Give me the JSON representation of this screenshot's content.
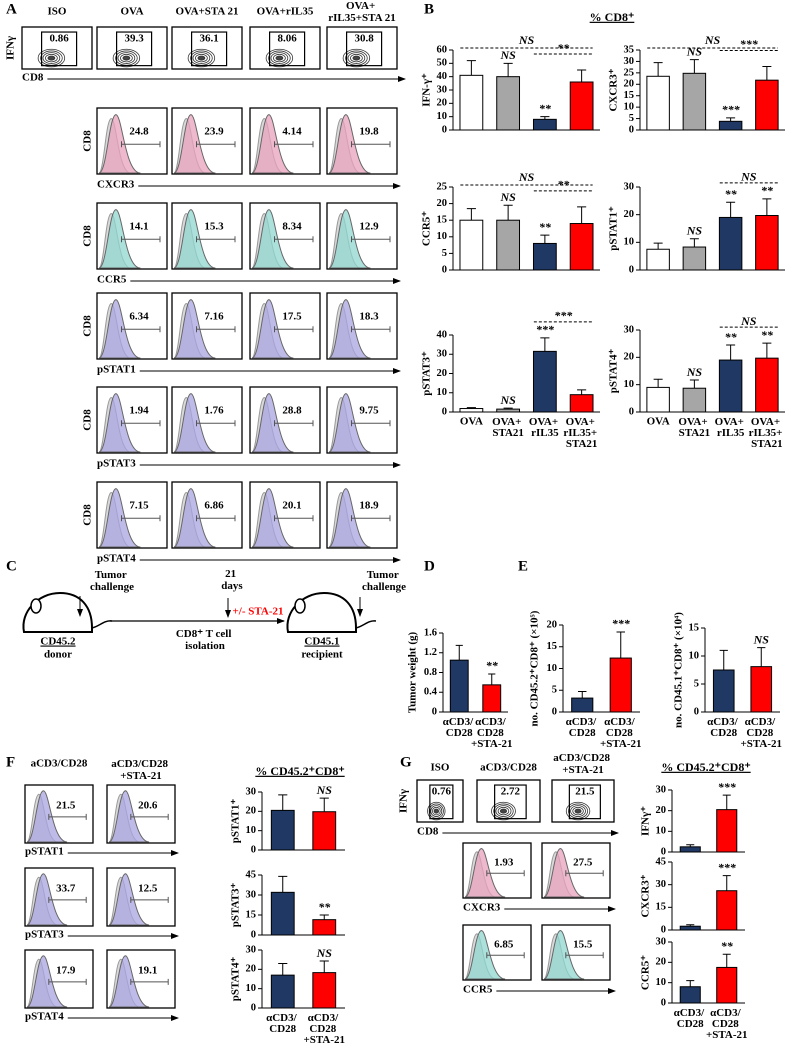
{
  "panel_labels": [
    "A",
    "B",
    "C",
    "D",
    "E",
    "F",
    "G"
  ],
  "panel_A": {
    "contour": {
      "y_label": "IFNγ",
      "x_label": "CD8",
      "samples": [
        "ISO",
        "OVA",
        "OVA+STA 21",
        "OVA+rIL35",
        "OVA+\nrIL35+STA 21"
      ],
      "values": [
        0.86,
        39.3,
        36.1,
        8.06,
        30.8
      ]
    },
    "histograms": [
      {
        "y_label": "CD8",
        "x_label": "CXCR3",
        "color": "#e8a0bc",
        "values": [
          24.8,
          23.9,
          4.14,
          19.8
        ]
      },
      {
        "y_label": "CD8",
        "x_label": "CCR5",
        "color": "#8fd6cf",
        "values": [
          14.1,
          15.3,
          8.34,
          12.9
        ]
      },
      {
        "y_label": "CD8",
        "x_label": "pSTAT1",
        "color": "#a9a4e0",
        "values": [
          6.34,
          7.16,
          17.5,
          18.3
        ]
      },
      {
        "y_label": "CD8",
        "x_label": "pSTAT3",
        "color": "#a9a4e0",
        "values": [
          1.94,
          1.76,
          28.8,
          9.75
        ]
      },
      {
        "y_label": "CD8",
        "x_label": "pSTAT4",
        "color": "#a9a4e0",
        "values": [
          7.15,
          6.86,
          20.1,
          18.9
        ]
      }
    ]
  },
  "panel_B": {
    "header": "% CD8⁺"
  },
  "panel_C": {
    "challenge_1": "Tumor\nchallenge",
    "donor_strain": "CD45.2",
    "donor": "donor",
    "days": "21\ndays",
    "isolation": "CD8⁺ T cell\nisolation",
    "treatment": "+/- STA-21",
    "recipient_strain": "CD45.1",
    "recipient": "recipient",
    "challenge_2": "Tumor\nchallenge"
  },
  "panel_F": {
    "columns": [
      "aCD3/CD28",
      "aCD3/CD28\n+STA-21"
    ],
    "header": "% CD45.2⁺CD8⁺",
    "histograms": [
      {
        "x_label": "pSTAT1",
        "color": "#a9a4e0",
        "values": [
          21.5,
          20.6
        ]
      },
      {
        "x_label": "pSTAT3",
        "color": "#a9a4e0",
        "values": [
          33.7,
          12.5
        ]
      },
      {
        "x_label": "pSTAT4",
        "color": "#a9a4e0",
        "values": [
          17.9,
          19.1
        ]
      }
    ]
  },
  "panel_G": {
    "contour": {
      "y_label": "IFNγ",
      "x_label": "CD8",
      "samples": [
        "ISO",
        "aCD3/CD28",
        "aCD3/CD28\n+STA-21"
      ],
      "values": [
        0.76,
        2.72,
        21.5
      ]
    },
    "header": "% CD45.2⁺CD8⁺",
    "histograms": [
      {
        "x_label": "CXCR3",
        "color": "#e8a0bc",
        "values": [
          1.93,
          27.5
        ]
      },
      {
        "x_label": "CCR5",
        "color": "#8fd6cf",
        "values": [
          6.85,
          15.5
        ]
      }
    ]
  },
  "chart_data": [
    {
      "type": "bar",
      "y_label": "IFN-γ⁺",
      "values": [
        41,
        40,
        8,
        36
      ],
      "errors": [
        11,
        10,
        2,
        9
      ],
      "colors": [
        "#ffffff",
        "#a6a6a6",
        "#1f3864",
        "#ff0000"
      ],
      "ylim": [
        0,
        60
      ],
      "yticks": [
        0,
        10,
        20,
        30,
        40,
        50,
        60
      ],
      "bar_labels": [
        null,
        "NS",
        "**",
        null
      ],
      "overall_label": "NS",
      "pair_label": "**"
    },
    {
      "type": "bar",
      "y_label": "CXCR3⁺",
      "values": [
        23.5,
        24.8,
        3.8,
        21.8
      ],
      "errors": [
        6,
        6,
        1.5,
        6
      ],
      "colors": [
        "#ffffff",
        "#a6a6a6",
        "#1f3864",
        "#ff0000"
      ],
      "ylim": [
        0,
        35
      ],
      "yticks": [
        0,
        5,
        10,
        15,
        20,
        25,
        30,
        35
      ],
      "bar_labels": [
        null,
        "NS",
        "***",
        null
      ],
      "overall_label": "NS",
      "pair_label": "***"
    },
    {
      "type": "bar",
      "y_label": "CCR5⁺",
      "values": [
        15,
        15,
        8,
        14
      ],
      "errors": [
        3.5,
        4.5,
        2.5,
        5
      ],
      "colors": [
        "#ffffff",
        "#a6a6a6",
        "#1f3864",
        "#ff0000"
      ],
      "ylim": [
        0,
        25
      ],
      "yticks": [
        0,
        5,
        10,
        15,
        20,
        25
      ],
      "bar_labels": [
        null,
        "NS",
        "**",
        null
      ],
      "overall_label": "NS",
      "pair_label": "**"
    },
    {
      "type": "bar",
      "y_label": "pSTAT1⁺",
      "values": [
        7.5,
        8.3,
        19,
        19.7
      ],
      "errors": [
        2.2,
        3,
        5.5,
        6
      ],
      "colors": [
        "#ffffff",
        "#a6a6a6",
        "#1f3864",
        "#ff0000"
      ],
      "ylim": [
        0,
        30
      ],
      "yticks": [
        0,
        10,
        20,
        30
      ],
      "bar_labels": [
        null,
        "NS",
        "**",
        "**"
      ],
      "pair_label": "NS"
    },
    {
      "type": "bar",
      "y_label": "pSTAT3⁺",
      "categories": [
        "OVA",
        "OVA+\nSTA21",
        "OVA+\nrIL35",
        "OVA+\nrIL35+\nSTA21"
      ],
      "values": [
        1.8,
        1.5,
        31.5,
        9
      ],
      "errors": [
        0.5,
        0.5,
        7,
        2.5
      ],
      "colors": [
        "#ffffff",
        "#a6a6a6",
        "#1f3864",
        "#ff0000"
      ],
      "ylim": [
        0,
        40
      ],
      "yticks": [
        0,
        10,
        20,
        30,
        40
      ],
      "bar_labels": [
        null,
        "NS",
        "***",
        null
      ],
      "pair_label": "***"
    },
    {
      "type": "bar",
      "y_label": "pSTAT4⁺",
      "categories": [
        "OVA",
        "OVA+\nSTA21",
        "OVA+\nrIL35",
        "OVA+\nrIL35+\nSTA21"
      ],
      "values": [
        9,
        8.7,
        19,
        19.7
      ],
      "errors": [
        3,
        3,
        5.5,
        5.5
      ],
      "colors": [
        "#ffffff",
        "#a6a6a6",
        "#1f3864",
        "#ff0000"
      ],
      "ylim": [
        0,
        30
      ],
      "yticks": [
        0,
        10,
        20,
        30
      ],
      "bar_labels": [
        null,
        "NS",
        "**",
        "**"
      ],
      "pair_label": "NS"
    },
    {
      "type": "bar",
      "y_label": "Tumor weight (g)",
      "categories": [
        "αCD3/\nCD28",
        "αCD3/\nCD28\n+STA-21"
      ],
      "values": [
        1.05,
        0.55
      ],
      "errors": [
        0.3,
        0.22
      ],
      "colors": [
        "#1f3864",
        "#ff0000"
      ],
      "ylim": [
        0,
        1.6
      ],
      "yticks": [
        0,
        0.4,
        0.8,
        1.2,
        1.6
      ],
      "bar_labels": [
        null,
        "**"
      ]
    },
    {
      "type": "bar",
      "y_label": "no. CD45.2⁺CD8⁺ (×10⁵)",
      "categories": [
        "αCD3/\nCD28",
        "αCD3/\nCD28\n+STA-21"
      ],
      "values": [
        3.2,
        12.4
      ],
      "errors": [
        1.5,
        6
      ],
      "colors": [
        "#1f3864",
        "#ff0000"
      ],
      "ylim": [
        0,
        20
      ],
      "yticks": [
        0,
        5,
        10,
        15,
        20
      ],
      "bar_labels": [
        null,
        "***"
      ]
    },
    {
      "type": "bar",
      "y_label": "no. CD45.1⁺CD8⁺ (×10⁴)",
      "categories": [
        "αCD3/\nCD28",
        "αCD3/\nCD28\n+STA-21"
      ],
      "values": [
        7.5,
        8.1
      ],
      "errors": [
        3.5,
        3.4
      ],
      "colors": [
        "#1f3864",
        "#ff0000"
      ],
      "ylim": [
        0,
        15
      ],
      "yticks": [
        0,
        5,
        10,
        15
      ],
      "bar_labels": [
        null,
        "NS"
      ]
    },
    {
      "type": "bar",
      "y_label": "pSTAT1⁺",
      "values": [
        20.5,
        19.8
      ],
      "errors": [
        8,
        7
      ],
      "colors": [
        "#1f3864",
        "#ff0000"
      ],
      "ylim": [
        0,
        30
      ],
      "yticks": [
        0,
        10,
        20,
        30
      ],
      "bar_labels": [
        null,
        "NS"
      ]
    },
    {
      "type": "bar",
      "y_label": "pSTAT3⁺",
      "values": [
        32,
        11.5
      ],
      "errors": [
        12,
        3.5
      ],
      "colors": [
        "#1f3864",
        "#ff0000"
      ],
      "ylim": [
        0,
        45
      ],
      "yticks": [
        0,
        15,
        30,
        45
      ],
      "bar_labels": [
        null,
        "**"
      ]
    },
    {
      "type": "bar",
      "y_label": "pSTAT4⁺",
      "categories": [
        "αCD3/\nCD28",
        "αCD3/\nCD28\n+STA-21"
      ],
      "values": [
        17,
        18.3
      ],
      "errors": [
        6,
        6
      ],
      "colors": [
        "#1f3864",
        "#ff0000"
      ],
      "ylim": [
        0,
        30
      ],
      "yticks": [
        0,
        10,
        20,
        30
      ],
      "bar_labels": [
        null,
        "NS"
      ]
    },
    {
      "type": "bar",
      "y_label": "IFNγ⁺",
      "values": [
        2.5,
        20.5
      ],
      "errors": [
        1,
        7
      ],
      "colors": [
        "#1f3864",
        "#ff0000"
      ],
      "ylim": [
        0,
        30
      ],
      "yticks": [
        0,
        10,
        20,
        30
      ],
      "bar_labels": [
        null,
        "***"
      ]
    },
    {
      "type": "bar",
      "y_label": "CXCR3⁺",
      "values": [
        2.5,
        26
      ],
      "errors": [
        1,
        10
      ],
      "colors": [
        "#1f3864",
        "#ff0000"
      ],
      "ylim": [
        0,
        45
      ],
      "yticks": [
        0,
        15,
        30,
        45
      ],
      "bar_labels": [
        null,
        "***"
      ]
    },
    {
      "type": "bar",
      "y_label": "CCR5⁺",
      "categories": [
        "αCD3/\nCD28",
        "αCD3/\nCD28\n+STA-21"
      ],
      "values": [
        8,
        17.5
      ],
      "errors": [
        3,
        6.5
      ],
      "colors": [
        "#1f3864",
        "#ff0000"
      ],
      "ylim": [
        0,
        30
      ],
      "yticks": [
        0,
        10,
        20,
        30
      ],
      "bar_labels": [
        null,
        "**"
      ]
    }
  ]
}
